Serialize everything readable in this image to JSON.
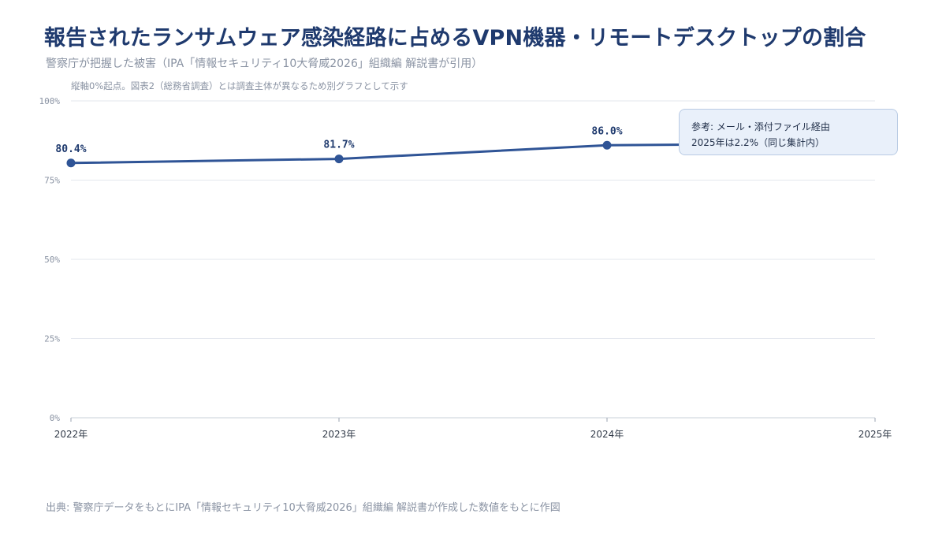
{
  "title": "報告されたランサムウェア感染経路に占めるVPN機器・リモートデスクトップの割合",
  "subtitle": "警察庁が把握した被害（IPA「情報セキュリティ10大脅威2026」組織編 解説書が引用）",
  "note": "縦軸0%起点。図表2（総務省調査）とは調査主体が異なるため別グラフとして示す",
  "callout": {
    "line1": "参考: メール・添付ファイル経由",
    "line2": "2025年は2.2%（同じ集計内）"
  },
  "source": "出典: 警察庁データをもとにIPA「情報セキュリティ10大脅威2026」組織編 解説書が作成した数値をもとに作図",
  "colors": {
    "series": "#2f5496",
    "title": "#1f3a6e",
    "grid": "#e3e7ee"
  },
  "chart_data": {
    "type": "line",
    "categories": [
      "2022年",
      "2023年",
      "2024年",
      "2025年"
    ],
    "series": [
      {
        "values": [
          80.4,
          81.7,
          86.0,
          86.6
        ],
        "labels": [
          "80.4%",
          "81.7%",
          "86.0%",
          null
        ]
      }
    ],
    "ylim": [
      0,
      100
    ],
    "yticks": [
      0,
      25,
      50,
      75,
      100
    ],
    "ytick_labels": [
      "0%",
      "25%",
      "50%",
      "75%",
      "100%"
    ],
    "grid": true,
    "legend": "none"
  }
}
